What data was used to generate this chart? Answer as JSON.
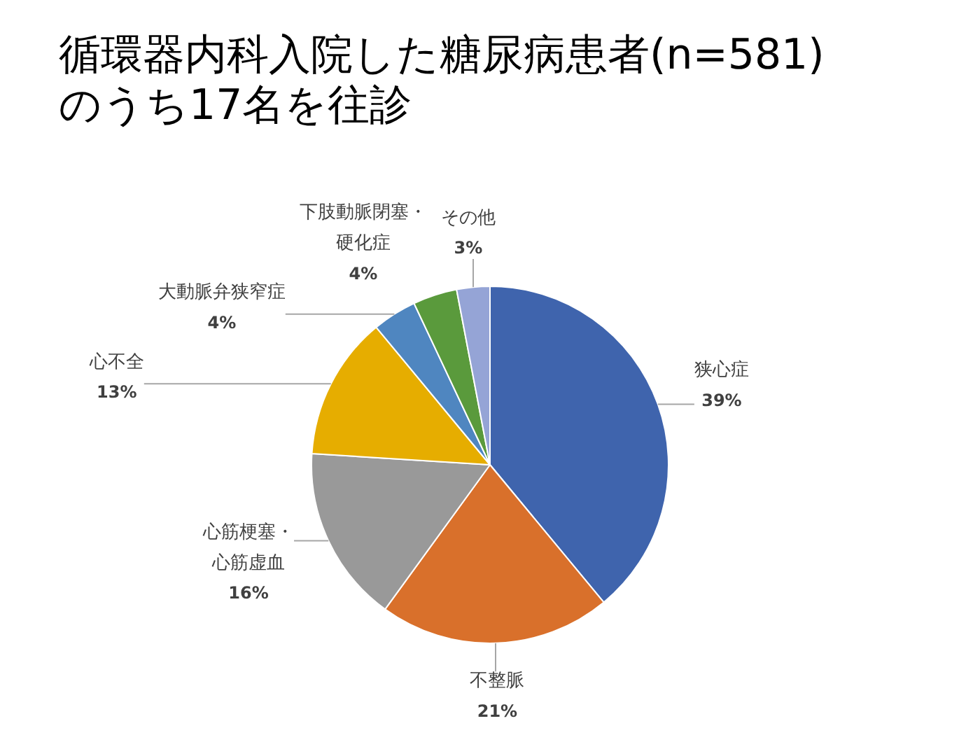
{
  "chart_data": {
    "type": "pie",
    "title": "循環器内科入院した糖尿病患者(n=581)\nのうち17名を往診",
    "categories": [
      "狭心症",
      "不整脈",
      "心筋梗塞・心筋虚血",
      "心不全",
      "大動脈弁狭窄症",
      "下肢動脈閉塞・硬化症",
      "その他"
    ],
    "values": [
      39,
      21,
      16,
      13,
      4,
      4,
      3
    ],
    "value_labels": [
      "39%",
      "21%",
      "16%",
      "13%",
      "4%",
      "4%",
      "3%"
    ],
    "colors": [
      "#3f64ad",
      "#d9702b",
      "#999999",
      "#e6ad00",
      "#4f86c0",
      "#5a9a3c",
      "#95a4d6"
    ]
  }
}
